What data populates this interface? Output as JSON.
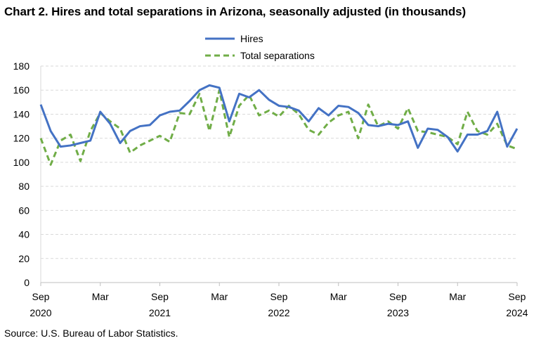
{
  "title": "Chart 2. Hires and total separations in Arizona, seasonally adjusted (in thousands)",
  "source": "Source: U.S. Bureau of Labor Statistics.",
  "chart_data": {
    "type": "line",
    "title": "Chart 2. Hires and total separations in Arizona, seasonally adjusted (in thousands)",
    "xlabel": "",
    "ylabel": "",
    "ylim": [
      0,
      180
    ],
    "yticks": [
      0,
      20,
      40,
      60,
      80,
      100,
      120,
      140,
      160,
      180
    ],
    "grid": true,
    "legend_position": "top-center",
    "x": [
      "2020-09",
      "2020-10",
      "2020-11",
      "2020-12",
      "2021-01",
      "2021-02",
      "2021-03",
      "2021-04",
      "2021-05",
      "2021-06",
      "2021-07",
      "2021-08",
      "2021-09",
      "2021-10",
      "2021-11",
      "2021-12",
      "2022-01",
      "2022-02",
      "2022-03",
      "2022-04",
      "2022-05",
      "2022-06",
      "2022-07",
      "2022-08",
      "2022-09",
      "2022-10",
      "2022-11",
      "2022-12",
      "2023-01",
      "2023-02",
      "2023-03",
      "2023-04",
      "2023-05",
      "2023-06",
      "2023-07",
      "2023-08",
      "2023-09",
      "2023-10",
      "2023-11",
      "2023-12",
      "2024-01",
      "2024-02",
      "2024-03",
      "2024-04",
      "2024-05",
      "2024-06",
      "2024-07",
      "2024-08",
      "2024-09"
    ],
    "x_tick_labels": [
      {
        "month": "Sep",
        "year": "2020",
        "x": "2020-09"
      },
      {
        "month": "Mar",
        "year": "",
        "x": "2021-03"
      },
      {
        "month": "Sep",
        "year": "2021",
        "x": "2021-09"
      },
      {
        "month": "Mar",
        "year": "",
        "x": "2022-03"
      },
      {
        "month": "Sep",
        "year": "2022",
        "x": "2022-09"
      },
      {
        "month": "Mar",
        "year": "",
        "x": "2023-03"
      },
      {
        "month": "Sep",
        "year": "2023",
        "x": "2023-09"
      },
      {
        "month": "Mar",
        "year": "",
        "x": "2024-03"
      },
      {
        "month": "Sep",
        "year": "2024",
        "x": "2024-09"
      }
    ],
    "series": [
      {
        "name": "Hires",
        "color": "#4472c4",
        "style": "solid",
        "values": [
          148,
          126,
          113,
          114,
          116,
          118,
          142,
          132,
          116,
          126,
          130,
          131,
          139,
          142,
          143,
          151,
          160,
          164,
          162,
          134,
          157,
          154,
          160,
          152,
          147,
          146,
          143,
          134,
          145,
          139,
          147,
          146,
          141,
          131,
          130,
          132,
          131,
          134,
          112,
          128,
          127,
          121,
          109,
          123,
          123,
          126,
          142,
          113,
          128
        ]
      },
      {
        "name": "Total separations",
        "color": "#70ad47",
        "style": "dashed",
        "values": [
          120,
          98,
          118,
          123,
          101,
          126,
          141,
          134,
          128,
          108,
          114,
          118,
          122,
          117,
          141,
          140,
          157,
          126,
          160,
          121,
          147,
          156,
          139,
          143,
          138,
          147,
          140,
          127,
          123,
          133,
          139,
          142,
          120,
          148,
          130,
          134,
          128,
          145,
          126,
          125,
          123,
          121,
          115,
          142,
          126,
          123,
          132,
          114,
          111
        ]
      }
    ]
  }
}
